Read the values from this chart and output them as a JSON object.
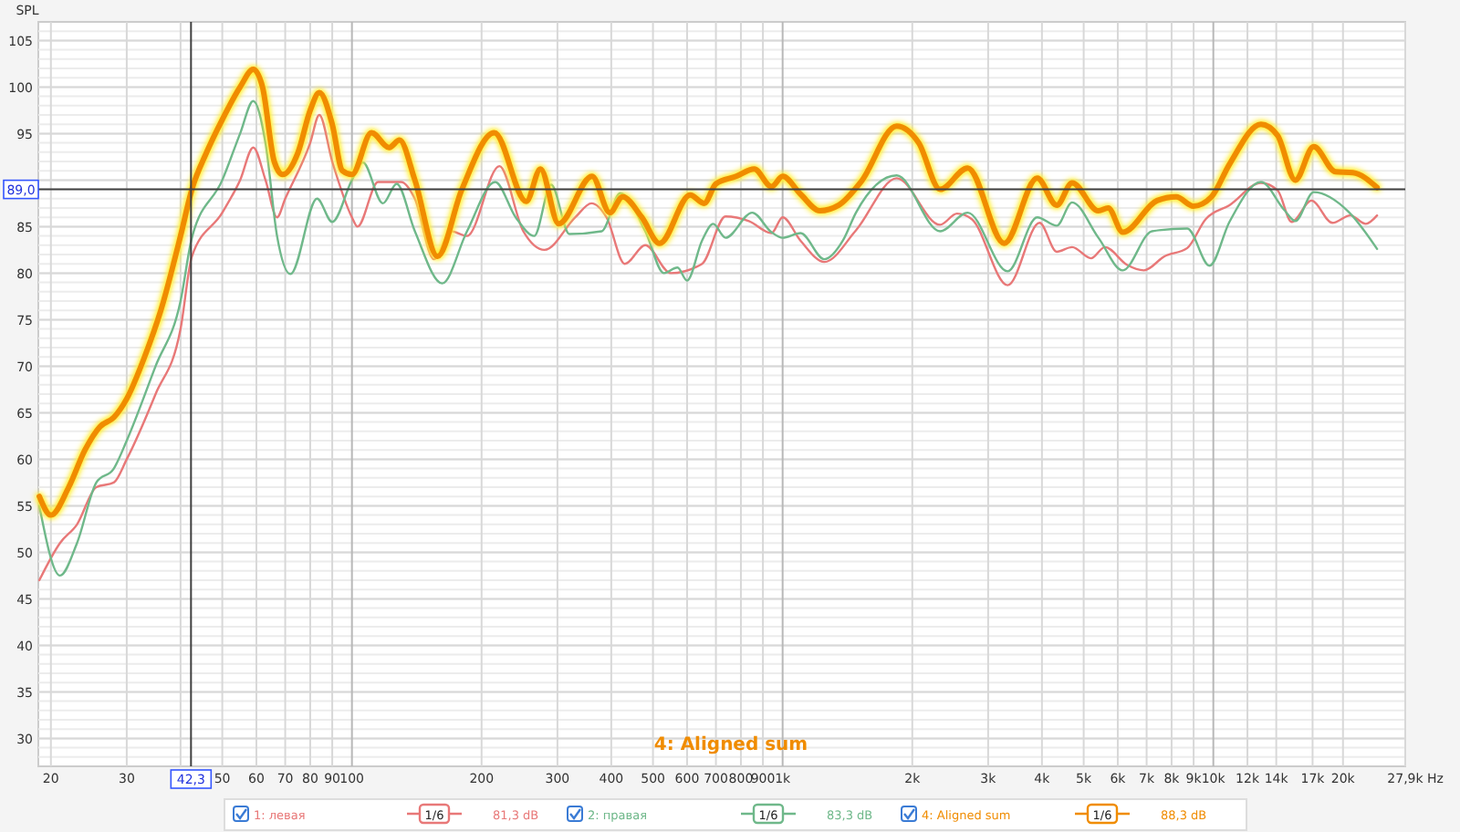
{
  "chart_data": {
    "type": "line",
    "ylabel": "SPL",
    "log": "x",
    "grid": true,
    "legend": "bottom",
    "line_style": "solid",
    "marker": "none",
    "xlim": [
      18.7,
      27900
    ],
    "ylim": [
      27,
      107
    ],
    "yticks": [
      30,
      35,
      40,
      45,
      50,
      55,
      60,
      65,
      70,
      75,
      80,
      85,
      {
        "value": 90,
        "label": null
      },
      95,
      100,
      105
    ],
    "xticks": [
      20,
      30,
      {
        "value": 40,
        "label": null
      },
      50,
      60,
      70,
      80,
      90,
      100,
      200,
      300,
      400,
      500,
      600,
      700,
      800,
      900,
      {
        "value": 1000,
        "label": "1k"
      },
      {
        "value": 2000,
        "label": "2k"
      },
      {
        "value": 3000,
        "label": "3k"
      },
      {
        "value": 4000,
        "label": "4k"
      },
      {
        "value": 5000,
        "label": "5k"
      },
      {
        "value": 6000,
        "label": "6k"
      },
      {
        "value": 7000,
        "label": "7k"
      },
      {
        "value": 8000,
        "label": "8k"
      },
      {
        "value": 9000,
        "label": "9k"
      },
      {
        "value": 10000,
        "label": "10k"
      },
      {
        "value": 12000,
        "label": "12k"
      },
      {
        "value": 14000,
        "label": "14k"
      },
      {
        "value": 17000,
        "label": "17k"
      },
      {
        "value": 20000,
        "label": "20k"
      },
      {
        "value": 27900,
        "label": "27,9k"
      }
    ],
    "xlabel": "Hz",
    "ref_lines": [
      {
        "axis": "x",
        "value": 42.3,
        "label": "42,3",
        "color": "#404040"
      },
      {
        "axis": "y",
        "value": 89,
        "label": "89,0",
        "color": "#404040"
      }
    ],
    "annotations": [
      "4: Aligned sum",
      "1/6",
      "81,3 dB",
      "1/6",
      "83,3 dB",
      "1/6",
      "88,3 dB"
    ],
    "series": [
      {
        "name": "1: левая",
        "color": "#e87878",
        "x": [
          18.8,
          21,
          23,
          25.5,
          28,
          30,
          35,
          40,
          42.5,
          50,
          55,
          59,
          63,
          67,
          70,
          80,
          84,
          90,
          100,
          103,
          115,
          130,
          140,
          155,
          170,
          185,
          220,
          250,
          280,
          330,
          360,
          390,
          430,
          480,
          550,
          650,
          737,
          835,
          942,
          1000,
          1100,
          1250,
          1480,
          1840,
          2320,
          2540,
          2750,
          3330,
          3950,
          4330,
          4700,
          5200,
          5600,
          6300,
          6900,
          7700,
          8700,
          9600,
          10900,
          12900,
          14100,
          15200,
          16900,
          18900,
          20800,
          22600,
          24000
        ],
        "values": [
          47,
          51,
          53,
          57,
          57.5,
          60,
          67,
          74,
          81.8,
          86.5,
          90,
          93.5,
          90,
          86,
          88,
          94,
          97,
          92,
          86,
          85,
          89.8,
          89.8,
          88,
          81.5,
          84.5,
          84,
          91.5,
          84.5,
          82.5,
          86,
          87.5,
          86,
          81,
          83,
          80,
          81,
          86.1,
          85.6,
          84.3,
          86,
          83.5,
          81.2,
          84.6,
          90.2,
          85.2,
          86.4,
          85.8,
          78.7,
          85.4,
          82.3,
          82.8,
          81.6,
          82.8,
          80.9,
          80.3,
          81.8,
          82.7,
          85.8,
          87.3,
          89.7,
          88.9,
          85.5,
          87.8,
          85.4,
          86.2,
          85.3,
          86.2
        ]
      },
      {
        "name": "2: правая",
        "color": "#6fb88a",
        "x": [
          18.8,
          21,
          23,
          25.5,
          28,
          30,
          35,
          40,
          42.5,
          50,
          55,
          59,
          63,
          67,
          72,
          83,
          90,
          100,
          106,
          118,
          127,
          140,
          162,
          185,
          215,
          240,
          265,
          290,
          320,
          380,
          420,
          480,
          530,
          570,
          600,
          650,
          690,
          737,
          850,
          942,
          1000,
          1100,
          1250,
          1380,
          1480,
          1840,
          2320,
          2690,
          3330,
          3900,
          4330,
          4700,
          5410,
          6160,
          7200,
          8700,
          9800,
          10900,
          12900,
          14600,
          15500,
          17100,
          20600,
          24000
        ],
        "values": [
          55,
          47.5,
          51,
          57.5,
          59,
          62,
          70,
          77,
          83.8,
          90,
          95,
          98.5,
          94,
          84,
          79.9,
          88,
          85.5,
          90,
          91.9,
          87.5,
          89.6,
          84.5,
          78.9,
          84.5,
          89.8,
          86,
          84,
          89.5,
          84.2,
          84.5,
          88.6,
          84.5,
          80,
          80.6,
          79.2,
          83.5,
          85.3,
          83.8,
          86.5,
          84.4,
          83.8,
          84.3,
          81.5,
          83.5,
          86.5,
          90.5,
          84.5,
          86.5,
          80.2,
          86,
          85.1,
          87.6,
          83.8,
          80.3,
          84.5,
          84.8,
          80.8,
          85.5,
          89.8,
          86.8,
          85.6,
          88.7,
          86.6,
          82.6
        ]
      },
      {
        "name": "4: Aligned sum",
        "color": "#f08c00",
        "x": [
          18.8,
          20,
          22,
          24,
          26,
          28,
          30,
          33,
          36,
          40,
          42.5,
          46,
          50,
          55,
          59,
          62,
          66,
          69,
          75,
          80,
          84,
          90,
          95,
          100,
          111,
          122,
          129,
          140,
          158,
          180,
          214,
          254,
          274,
          302,
          361,
          397,
          425,
          471,
          518,
          610,
          657,
          700,
          780,
          859,
          942,
          1000,
          1100,
          1220,
          1350,
          1520,
          1840,
          2070,
          2320,
          2690,
          3270,
          3900,
          4330,
          4700,
          5410,
          5700,
          6160,
          7400,
          8200,
          8990,
          9900,
          10900,
          12900,
          14100,
          15500,
          17100,
          19200,
          21100,
          24000
        ],
        "values": [
          56,
          54,
          57,
          61,
          63.5,
          64.5,
          66.5,
          71,
          76,
          84,
          89,
          93,
          96.5,
          100,
          101.9,
          100,
          92,
          90.6,
          93,
          97.5,
          99.4,
          96,
          91,
          90.6,
          95.1,
          93.5,
          94.3,
          90,
          81.8,
          89,
          95.1,
          87.7,
          91.2,
          85.3,
          90.4,
          86.5,
          88.2,
          86,
          83.2,
          88.4,
          87.5,
          89.6,
          90.4,
          91.2,
          89.3,
          90.4,
          88.5,
          86.7,
          87.3,
          89.8,
          95.8,
          94,
          89,
          91.3,
          83.2,
          90.2,
          87.3,
          89.7,
          86.7,
          87,
          84.4,
          87.8,
          88.2,
          87.2,
          88.2,
          91.7,
          96,
          94.8,
          90,
          93.6,
          90.9,
          90.8,
          89.2
        ]
      }
    ]
  }
}
